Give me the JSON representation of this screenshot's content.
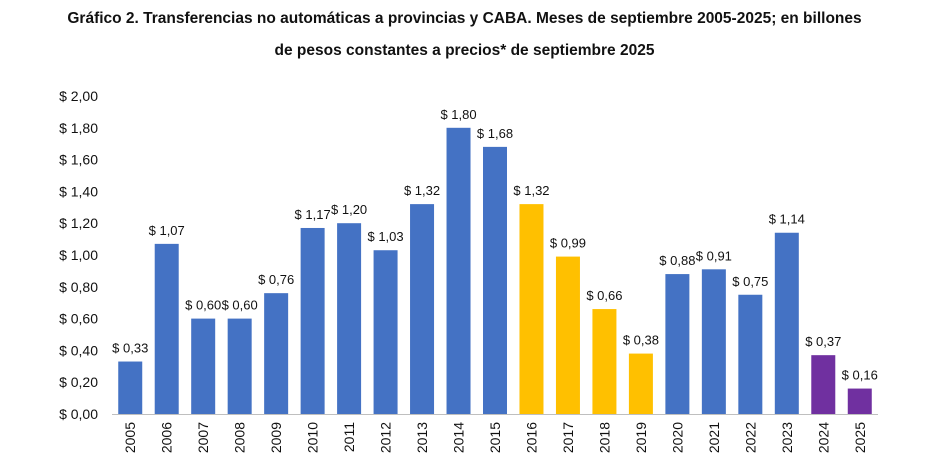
{
  "chart_data": {
    "type": "bar",
    "title": "Gráfico 2. Transferencias no automáticas a provincias y CABA. Meses de septiembre 2005-2025; en billones",
    "subtitle": "de pesos constantes a precios* de septiembre 2025",
    "xlabel": "",
    "ylabel": "",
    "ylim": [
      0,
      2.0
    ],
    "grid": false,
    "categories": [
      "2005",
      "2006",
      "2007",
      "2008",
      "2009",
      "2010",
      "2011",
      "2012",
      "2013",
      "2014",
      "2015",
      "2016",
      "2017",
      "2018",
      "2019",
      "2020",
      "2021",
      "2022",
      "2023",
      "2024",
      "2025"
    ],
    "values": [
      0.33,
      1.07,
      0.6,
      0.6,
      0.76,
      1.17,
      1.2,
      1.03,
      1.32,
      1.8,
      1.68,
      1.32,
      0.99,
      0.66,
      0.38,
      0.88,
      0.91,
      0.75,
      1.14,
      0.37,
      0.16
    ],
    "data_labels": [
      "$ 0,33",
      "$ 1,07",
      "$ 0,60",
      "$ 0,60",
      "$ 0,76",
      "$ 1,17",
      "$ 1,20",
      "$ 1,03",
      "$ 1,32",
      "$ 1,80",
      "$ 1,68",
      "$ 1,32",
      "$ 0,99",
      "$ 0,66",
      "$ 0,38",
      "$ 0,88",
      "$ 0,91",
      "$ 0,75",
      "$ 1,14",
      "$ 0,37",
      "$ 0,16"
    ],
    "bar_colors": [
      "#4472c4",
      "#4472c4",
      "#4472c4",
      "#4472c4",
      "#4472c4",
      "#4472c4",
      "#4472c4",
      "#4472c4",
      "#4472c4",
      "#4472c4",
      "#4472c4",
      "#ffc000",
      "#ffc000",
      "#ffc000",
      "#ffc000",
      "#4472c4",
      "#4472c4",
      "#4472c4",
      "#4472c4",
      "#7030a0",
      "#7030a0"
    ],
    "y_ticks": [
      0,
      0.2,
      0.4,
      0.6,
      0.8,
      1.0,
      1.2,
      1.4,
      1.6,
      1.8,
      2.0
    ],
    "y_tick_labels": [
      "$ 0,00",
      "$ 0,20",
      "$ 0,40",
      "$ 0,60",
      "$ 0,80",
      "$ 1,00",
      "$ 1,20",
      "$ 1,40",
      "$ 1,60",
      "$ 1,80",
      "$ 2,00"
    ]
  }
}
